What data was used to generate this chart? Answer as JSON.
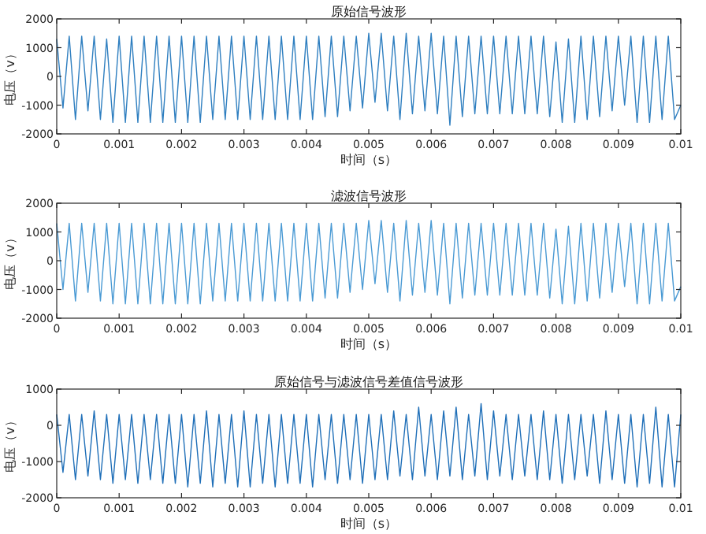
{
  "chart_data": [
    {
      "type": "line",
      "title": "原始信号波形",
      "xlabel": "时间（s）",
      "ylabel": "电压（v）",
      "xlim": [
        0,
        0.01
      ],
      "ylim": [
        -2000,
        2000
      ],
      "xticks": [
        0,
        0.001,
        0.002,
        0.003,
        0.004,
        0.005,
        0.006,
        0.007,
        0.008,
        0.009,
        0.01
      ],
      "yticks": [
        -2000,
        -1000,
        0,
        1000,
        2000
      ],
      "x": [
        0,
        0.0001,
        0.0002,
        0.0003,
        0.0004,
        0.0005,
        0.0006,
        0.0007,
        0.0008,
        0.0009,
        0.001,
        0.0011,
        0.0012,
        0.0013,
        0.0014,
        0.0015,
        0.0016,
        0.0017,
        0.0018,
        0.0019,
        0.002,
        0.0021,
        0.0022,
        0.0023,
        0.0024,
        0.0025,
        0.0026,
        0.0027,
        0.0028,
        0.0029,
        0.003,
        0.0031,
        0.0032,
        0.0033,
        0.0034,
        0.0035,
        0.0036,
        0.0037,
        0.0038,
        0.0039,
        0.004,
        0.0041,
        0.0042,
        0.0043,
        0.0044,
        0.0045,
        0.0046,
        0.0047,
        0.0048,
        0.0049,
        0.005,
        0.0051,
        0.0052,
        0.0053,
        0.0054,
        0.0055,
        0.0056,
        0.0057,
        0.0058,
        0.0059,
        0.006,
        0.0061,
        0.0062,
        0.0063,
        0.0064,
        0.0065,
        0.0066,
        0.0067,
        0.0068,
        0.0069,
        0.007,
        0.0071,
        0.0072,
        0.0073,
        0.0074,
        0.0075,
        0.0076,
        0.0077,
        0.0078,
        0.0079,
        0.008,
        0.0081,
        0.0082,
        0.0083,
        0.0084,
        0.0085,
        0.0086,
        0.0087,
        0.0088,
        0.0089,
        0.009,
        0.0091,
        0.0092,
        0.0093,
        0.0094,
        0.0095,
        0.0096,
        0.0097,
        0.0098,
        0.0099,
        0.01
      ],
      "series": [
        {
          "color": "#2f7fc0",
          "values": [
            1300,
            -1100,
            1400,
            -1500,
            1400,
            -1200,
            1400,
            -1500,
            1300,
            -1600,
            1400,
            -1600,
            1400,
            -1600,
            1400,
            -1600,
            1400,
            -1600,
            1400,
            -1600,
            1400,
            -1600,
            1400,
            -1600,
            1400,
            -1500,
            1400,
            -1500,
            1400,
            -1500,
            1400,
            -1500,
            1400,
            -1500,
            1400,
            -1500,
            1400,
            -1500,
            1400,
            -1500,
            1400,
            -1500,
            1400,
            -1400,
            1400,
            -1400,
            1400,
            -1200,
            1400,
            -1100,
            1500,
            -900,
            1500,
            -1200,
            1400,
            -1500,
            1500,
            -1300,
            1400,
            -1200,
            1500,
            -1300,
            1400,
            -1700,
            1400,
            -1400,
            1400,
            -1300,
            1400,
            -1300,
            1400,
            -1300,
            1400,
            -1300,
            1400,
            -1300,
            1400,
            -1300,
            1400,
            -1400,
            1200,
            -1600,
            1300,
            -1600,
            1400,
            -1500,
            1400,
            -1400,
            1400,
            -1200,
            1400,
            -1000,
            1400,
            -1600,
            1400,
            -1600,
            1400,
            -1500,
            1400,
            -1500,
            -1000
          ]
        }
      ]
    },
    {
      "type": "line",
      "title": "滤波信号波形",
      "xlabel": "时间（s）",
      "ylabel": "电压（v）",
      "xlim": [
        0,
        0.01
      ],
      "ylim": [
        -2000,
        2000
      ],
      "xticks": [
        0,
        0.001,
        0.002,
        0.003,
        0.004,
        0.005,
        0.006,
        0.007,
        0.008,
        0.009,
        0.01
      ],
      "yticks": [
        -2000,
        -1000,
        0,
        1000,
        2000
      ],
      "x": [
        0,
        0.0001,
        0.0002,
        0.0003,
        0.0004,
        0.0005,
        0.0006,
        0.0007,
        0.0008,
        0.0009,
        0.001,
        0.0011,
        0.0012,
        0.0013,
        0.0014,
        0.0015,
        0.0016,
        0.0017,
        0.0018,
        0.0019,
        0.002,
        0.0021,
        0.0022,
        0.0023,
        0.0024,
        0.0025,
        0.0026,
        0.0027,
        0.0028,
        0.0029,
        0.003,
        0.0031,
        0.0032,
        0.0033,
        0.0034,
        0.0035,
        0.0036,
        0.0037,
        0.0038,
        0.0039,
        0.004,
        0.0041,
        0.0042,
        0.0043,
        0.0044,
        0.0045,
        0.0046,
        0.0047,
        0.0048,
        0.0049,
        0.005,
        0.0051,
        0.0052,
        0.0053,
        0.0054,
        0.0055,
        0.0056,
        0.0057,
        0.0058,
        0.0059,
        0.006,
        0.0061,
        0.0062,
        0.0063,
        0.0064,
        0.0065,
        0.0066,
        0.0067,
        0.0068,
        0.0069,
        0.007,
        0.0071,
        0.0072,
        0.0073,
        0.0074,
        0.0075,
        0.0076,
        0.0077,
        0.0078,
        0.0079,
        0.008,
        0.0081,
        0.0082,
        0.0083,
        0.0084,
        0.0085,
        0.0086,
        0.0087,
        0.0088,
        0.0089,
        0.009,
        0.0091,
        0.0092,
        0.0093,
        0.0094,
        0.0095,
        0.0096,
        0.0097,
        0.0098,
        0.0099,
        0.01
      ],
      "series": [
        {
          "color": "#4a9ad4",
          "values": [
            1300,
            -1000,
            1300,
            -1400,
            1300,
            -1100,
            1300,
            -1400,
            1300,
            -1500,
            1300,
            -1500,
            1300,
            -1500,
            1300,
            -1500,
            1300,
            -1500,
            1300,
            -1500,
            1300,
            -1500,
            1300,
            -1500,
            1300,
            -1400,
            1300,
            -1400,
            1300,
            -1400,
            1300,
            -1400,
            1300,
            -1400,
            1300,
            -1400,
            1300,
            -1400,
            1300,
            -1400,
            1300,
            -1400,
            1300,
            -1300,
            1300,
            -1300,
            1300,
            -1100,
            1300,
            -1000,
            1400,
            -800,
            1400,
            -1100,
            1300,
            -1400,
            1400,
            -1200,
            1300,
            -1100,
            1400,
            -1200,
            1300,
            -1500,
            1300,
            -1300,
            1300,
            -1200,
            1300,
            -1200,
            1300,
            -1200,
            1300,
            -1200,
            1300,
            -1200,
            1300,
            -1200,
            1300,
            -1300,
            1100,
            -1500,
            1200,
            -1500,
            1300,
            -1400,
            1300,
            -1300,
            1300,
            -1100,
            1300,
            -900,
            1300,
            -1500,
            1300,
            -1500,
            1300,
            -1400,
            1300,
            -1400,
            -900
          ]
        }
      ]
    },
    {
      "type": "line",
      "title": "原始信号与滤波信号差值信号波形",
      "xlabel": "时间（s）",
      "ylabel": "电压（v）",
      "xlim": [
        0,
        0.01
      ],
      "ylim": [
        -2000,
        1000
      ],
      "xticks": [
        0,
        0.001,
        0.002,
        0.003,
        0.004,
        0.005,
        0.006,
        0.007,
        0.008,
        0.009,
        0.01
      ],
      "yticks": [
        -2000,
        -1000,
        0,
        1000
      ],
      "x": [
        0,
        0.0001,
        0.0002,
        0.0003,
        0.0004,
        0.0005,
        0.0006,
        0.0007,
        0.0008,
        0.0009,
        0.001,
        0.0011,
        0.0012,
        0.0013,
        0.0014,
        0.0015,
        0.0016,
        0.0017,
        0.0018,
        0.0019,
        0.002,
        0.0021,
        0.0022,
        0.0023,
        0.0024,
        0.0025,
        0.0026,
        0.0027,
        0.0028,
        0.0029,
        0.003,
        0.0031,
        0.0032,
        0.0033,
        0.0034,
        0.0035,
        0.0036,
        0.0037,
        0.0038,
        0.0039,
        0.004,
        0.0041,
        0.0042,
        0.0043,
        0.0044,
        0.0045,
        0.0046,
        0.0047,
        0.0048,
        0.0049,
        0.005,
        0.0051,
        0.0052,
        0.0053,
        0.0054,
        0.0055,
        0.0056,
        0.0057,
        0.0058,
        0.0059,
        0.006,
        0.0061,
        0.0062,
        0.0063,
        0.0064,
        0.0065,
        0.0066,
        0.0067,
        0.0068,
        0.0069,
        0.007,
        0.0071,
        0.0072,
        0.0073,
        0.0074,
        0.0075,
        0.0076,
        0.0077,
        0.0078,
        0.0079,
        0.008,
        0.0081,
        0.0082,
        0.0083,
        0.0084,
        0.0085,
        0.0086,
        0.0087,
        0.0088,
        0.0089,
        0.009,
        0.0091,
        0.0092,
        0.0093,
        0.0094,
        0.0095,
        0.0096,
        0.0097,
        0.0098,
        0.0099,
        0.01
      ],
      "series": [
        {
          "color": "#1f6fb8",
          "values": [
            300,
            -1300,
            300,
            -1500,
            300,
            -1400,
            400,
            -1500,
            300,
            -1600,
            300,
            -1500,
            300,
            -1600,
            300,
            -1500,
            300,
            -1600,
            300,
            -1600,
            300,
            -1700,
            300,
            -1600,
            400,
            -1700,
            300,
            -1600,
            300,
            -1700,
            400,
            -1700,
            300,
            -1600,
            300,
            -1700,
            300,
            -1600,
            300,
            -1600,
            300,
            -1700,
            300,
            -1500,
            300,
            -1600,
            300,
            -1500,
            300,
            -1600,
            300,
            -1500,
            300,
            -1500,
            400,
            -1400,
            300,
            -1500,
            500,
            -1400,
            300,
            -1500,
            400,
            -1400,
            500,
            -1500,
            300,
            -1400,
            600,
            -1500,
            400,
            -1400,
            300,
            -1500,
            300,
            -1400,
            300,
            -1500,
            400,
            -1500,
            300,
            -1600,
            300,
            -1500,
            300,
            -1400,
            300,
            -1600,
            400,
            -1500,
            300,
            -1600,
            300,
            -1700,
            300,
            -1600,
            500,
            -1700,
            300,
            -1700,
            300
          ]
        }
      ]
    }
  ]
}
